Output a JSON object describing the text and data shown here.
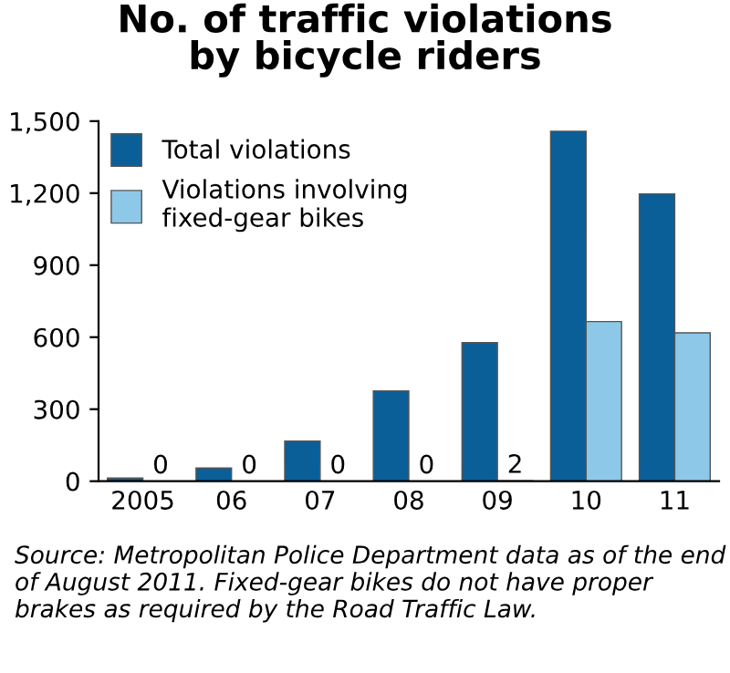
{
  "chart_data": {
    "type": "bar",
    "title": "No. of traffic violations\nby bicycle riders",
    "categories": [
      "2005",
      "06",
      "07",
      "08",
      "09",
      "10",
      "11"
    ],
    "series": [
      {
        "name": "Total violations",
        "color": "#0a5f98",
        "values": [
          13,
          55,
          167,
          376,
          577,
          1458,
          1197
        ]
      },
      {
        "name": "Violations involving\nfixed-gear bikes",
        "color": "#8ec8e8",
        "values": [
          0,
          0,
          0,
          0,
          2,
          665,
          618
        ],
        "value_labels": [
          "0",
          "0",
          "0",
          "0",
          "2",
          null,
          null
        ]
      }
    ],
    "ylim": [
      0,
      1500
    ],
    "yticks": [
      0,
      300,
      600,
      900,
      {
        "value": 1200,
        "label": "1,200"
      },
      {
        "value": 1500,
        "label": "1,500"
      }
    ],
    "grid": false,
    "legend": "top left",
    "annotations": [
      "Source: Metropolitan Police Department data as of the end of August 2011. Fixed-gear bikes do not have proper brakes as required by the Road Traffic Law."
    ]
  }
}
